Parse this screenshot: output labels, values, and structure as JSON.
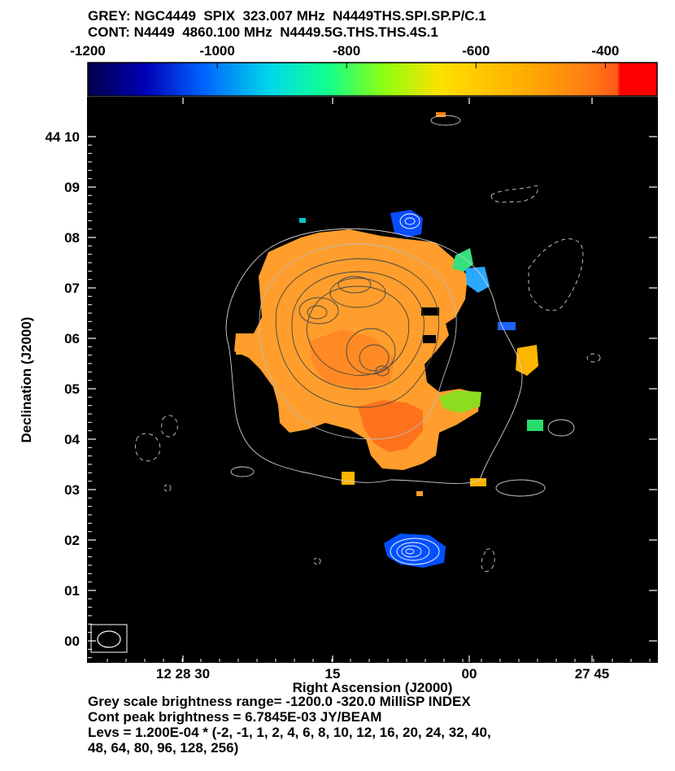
{
  "header": {
    "line1": "GREY: NGC4449  SPIX  323.007 MHz  N4449THS.SPI.SP.P/C.1",
    "line2": "CONT: N4449  4860.100 MHz  N4449.5G.THS.THS.4S.1"
  },
  "colorbar": {
    "min": -1200,
    "max": -320,
    "tick_labels": [
      "-1200",
      "-1000",
      "-800",
      "-600",
      "-400"
    ],
    "tick_values": [
      -1200,
      -1000,
      -800,
      -600,
      -400
    ]
  },
  "chart_data": {
    "type": "heatmap",
    "title": "GREY: NGC4449  SPIX  323.007 MHz  N4449THS.SPI.SP.P/C.1",
    "subtitle": "CONT: N4449  4860.100 MHz  N4449.5G.THS.THS.4S.1",
    "xlabel": "Right Ascension (J2000)",
    "ylabel": "Declination (J2000)",
    "x_tick_labels": [
      "12 28 30",
      "15",
      "00",
      "27 45"
    ],
    "y_tick_labels": [
      "44 10",
      "09",
      "08",
      "07",
      "06",
      "05",
      "04",
      "03",
      "02",
      "01",
      "00"
    ],
    "grey_range": [
      -1200.0,
      -320.0
    ],
    "grey_unit": "MilliSP INDEX",
    "cont_peak": "6.7845E-03 JY/BEAM",
    "contour_base": 0.00012,
    "contour_levels": [
      -2,
      -1,
      1,
      2,
      4,
      6,
      8,
      10,
      12,
      16,
      20,
      24,
      32,
      40,
      48,
      64,
      80,
      96,
      128,
      256
    ],
    "colors": {
      "background": "#000000",
      "main_fill": "#ff9e2c",
      "core_fill": "#ff5a18",
      "cool_fill": "#1e64ff",
      "contour_color": "#ffffff"
    }
  },
  "footer": {
    "line1": "Grey scale brightness range= -1200.0 -320.0 MilliSP INDEX",
    "line2": "Cont peak brightness = 6.7845E-03 JY/BEAM",
    "line3": "Levs = 1.200E-04 * (-2, -1, 1, 2, 4, 6, 8, 10, 12, 16, 20, 24, 32, 40,",
    "line4": "48, 64, 80, 96, 128, 256)"
  }
}
